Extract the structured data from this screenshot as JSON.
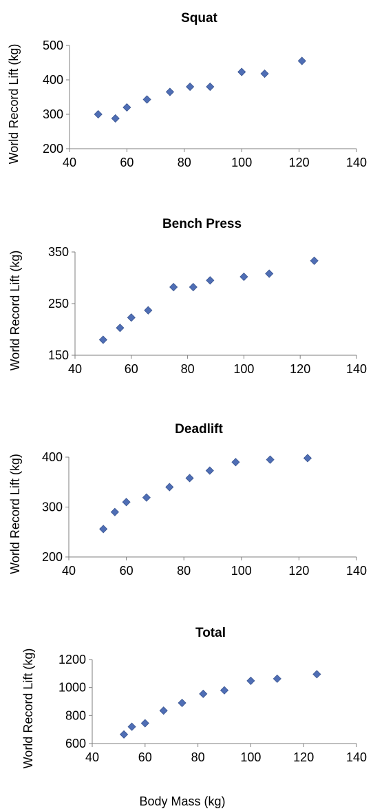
{
  "chart_data": [
    {
      "type": "scatter",
      "title": "Squat",
      "xlabel": "",
      "ylabel": "World Record Lift (kg)",
      "xlim": [
        40,
        140
      ],
      "ylim": [
        200,
        500
      ],
      "xticks": [
        40,
        60,
        80,
        100,
        120,
        140
      ],
      "yticks": [
        200,
        300,
        400,
        500
      ],
      "grid": false,
      "marker_color": "#4F6EB5",
      "x": [
        50,
        56,
        60,
        67,
        75,
        82,
        89,
        100,
        108,
        121
      ],
      "y": [
        300,
        288,
        320,
        343,
        365,
        380,
        380,
        423,
        418,
        455
      ]
    },
    {
      "type": "scatter",
      "title": "Bench Press",
      "xlabel": "",
      "ylabel": "World Record Lift (kg)",
      "xlim": [
        40,
        140
      ],
      "ylim": [
        150,
        350
      ],
      "xticks": [
        40,
        60,
        80,
        100,
        120,
        140
      ],
      "yticks": [
        150,
        250,
        350
      ],
      "grid": false,
      "marker_color": "#4F6EB5",
      "x": [
        50,
        56,
        60,
        66,
        75,
        82,
        88,
        100,
        109,
        125
      ],
      "y": [
        180,
        203,
        223,
        237,
        282,
        282,
        295,
        302,
        308,
        333
      ]
    },
    {
      "type": "scatter",
      "title": "Deadlift",
      "xlabel": "",
      "ylabel": "World Record Lift (kg)",
      "xlim": [
        40,
        140
      ],
      "ylim": [
        200,
        400
      ],
      "xticks": [
        40,
        60,
        80,
        100,
        120,
        140
      ],
      "yticks": [
        200,
        300,
        400
      ],
      "grid": false,
      "marker_color": "#4F6EB5",
      "x": [
        52,
        56,
        60,
        67,
        75,
        82,
        89,
        98,
        110,
        123
      ],
      "y": [
        256,
        290,
        310,
        319,
        340,
        358,
        373,
        390,
        395,
        398
      ]
    },
    {
      "type": "scatter",
      "title": "Total",
      "xlabel": "Body Mass (kg)",
      "ylabel": "World Record Lift (kg)",
      "xlim": [
        40,
        140
      ],
      "ylim": [
        600,
        1200
      ],
      "xticks": [
        40,
        60,
        80,
        100,
        120,
        140
      ],
      "yticks": [
        600,
        800,
        1000,
        1200
      ],
      "grid": false,
      "marker_color": "#4F6EB5",
      "x": [
        52,
        55,
        60,
        67,
        74,
        82,
        90,
        100,
        110,
        125
      ],
      "y": [
        665,
        720,
        745,
        835,
        890,
        955,
        980,
        1048,
        1063,
        1095
      ]
    }
  ]
}
